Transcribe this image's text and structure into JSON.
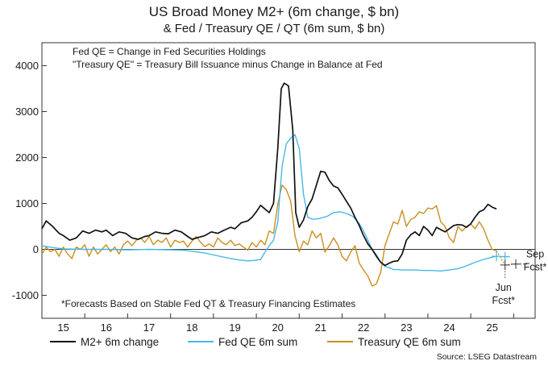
{
  "chart_data": {
    "type": "line",
    "title": "US Broad Money M2+ (6m change, $ bn)",
    "subtitle": "& Fed / Treasury QE / QT (6m sum, $ bn)",
    "notes": [
      "Fed QE = Change in Fed Securities Holdings",
      "\"Treasury QE\" = Treasury Bill Issuance minus Change in Balance at Fed"
    ],
    "footnote": "*Forecasts Based on Stable Fed QT & Treasury Financing Estimates",
    "source": "Source: LSEG Datastream",
    "xlabel": "",
    "ylabel": "",
    "xlim": [
      2014.5,
      2026.0
    ],
    "ylim": [
      -1500,
      4500
    ],
    "y_ticks": [
      -1000,
      0,
      1000,
      2000,
      3000,
      4000
    ],
    "y_tick_labels": [
      "-1000",
      "0",
      "1000",
      "2000",
      "3000",
      "4000"
    ],
    "x_ticks": [
      2015,
      2016,
      2017,
      2018,
      2019,
      2020,
      2021,
      2022,
      2023,
      2024,
      2025
    ],
    "x_tick_labels": [
      "15",
      "16",
      "17",
      "18",
      "19",
      "20",
      "21",
      "22",
      "23",
      "24",
      "25"
    ],
    "x_tick_bounds": [
      2014.5,
      2015.5,
      2016.5,
      2017.5,
      2018.5,
      2019.5,
      2020.5,
      2021.5,
      2022.5,
      2023.5,
      2024.5,
      2025.5,
      2026.0
    ],
    "series": [
      {
        "name": "M2+ 6m change",
        "color": "#111111",
        "x": [
          2014.5,
          2014.6,
          2014.75,
          2014.9,
          2015.0,
          2015.15,
          2015.3,
          2015.45,
          2015.6,
          2015.75,
          2015.9,
          2016.0,
          2016.15,
          2016.3,
          2016.45,
          2016.6,
          2016.75,
          2016.9,
          2017.0,
          2017.15,
          2017.3,
          2017.45,
          2017.6,
          2017.75,
          2017.9,
          2018.0,
          2018.15,
          2018.3,
          2018.45,
          2018.6,
          2018.75,
          2018.9,
          2019.0,
          2019.15,
          2019.3,
          2019.4,
          2019.5,
          2019.6,
          2019.7,
          2019.8,
          2019.9,
          2020.0,
          2020.08,
          2020.15,
          2020.25,
          2020.35,
          2020.42,
          2020.5,
          2020.6,
          2020.7,
          2020.8,
          2020.9,
          2021.0,
          2021.1,
          2021.2,
          2021.3,
          2021.4,
          2021.5,
          2021.6,
          2021.7,
          2021.8,
          2021.9,
          2022.0,
          2022.1,
          2022.2,
          2022.3,
          2022.4,
          2022.5,
          2022.6,
          2022.7,
          2022.8,
          2022.9,
          2023.0,
          2023.1,
          2023.2,
          2023.3,
          2023.4,
          2023.5,
          2023.6,
          2023.7,
          2023.8,
          2023.9,
          2024.0,
          2024.1,
          2024.2,
          2024.3,
          2024.4,
          2024.5,
          2024.6,
          2024.7,
          2024.8,
          2024.9,
          2025.0,
          2025.1
        ],
        "values": [
          450,
          620,
          500,
          350,
          300,
          200,
          250,
          400,
          350,
          420,
          380,
          420,
          300,
          380,
          350,
          250,
          220,
          280,
          300,
          380,
          350,
          340,
          420,
          380,
          280,
          220,
          260,
          300,
          380,
          350,
          420,
          480,
          450,
          580,
          620,
          700,
          820,
          960,
          880,
          800,
          1000,
          2200,
          3500,
          3620,
          3560,
          2600,
          800,
          480,
          640,
          930,
          1100,
          1400,
          1700,
          1680,
          1500,
          1380,
          1340,
          1200,
          1050,
          900,
          700,
          520,
          300,
          120,
          0,
          -150,
          -280,
          -350,
          -300,
          -260,
          -250,
          -100,
          200,
          320,
          380,
          300,
          500,
          420,
          300,
          480,
          430,
          380,
          450,
          520,
          540,
          530,
          480,
          560,
          700,
          820,
          860,
          980,
          920,
          880
        ]
      },
      {
        "name": "Fed QE 6m sum",
        "color": "#47b7ea",
        "x": [
          2014.5,
          2014.75,
          2015.0,
          2015.5,
          2016.0,
          2016.5,
          2017.0,
          2017.5,
          2017.8,
          2018.0,
          2018.3,
          2018.6,
          2018.9,
          2019.1,
          2019.3,
          2019.45,
          2019.6,
          2019.7,
          2019.8,
          2019.9,
          2020.0,
          2020.1,
          2020.2,
          2020.3,
          2020.4,
          2020.5,
          2020.6,
          2020.7,
          2020.8,
          2020.9,
          2021.0,
          2021.15,
          2021.3,
          2021.45,
          2021.6,
          2021.75,
          2021.9,
          2022.0,
          2022.1,
          2022.2,
          2022.3,
          2022.4,
          2022.5,
          2022.6,
          2022.7,
          2022.8,
          2022.9,
          2023.0,
          2023.2,
          2023.4,
          2023.6,
          2023.8,
          2024.0,
          2024.2,
          2024.4,
          2024.6,
          2024.8,
          2025.0,
          2025.1
        ],
        "values": [
          80,
          40,
          10,
          0,
          0,
          -10,
          0,
          -10,
          -20,
          -40,
          -80,
          -140,
          -200,
          -230,
          -250,
          -240,
          -220,
          -60,
          80,
          200,
          600,
          1800,
          2300,
          2420,
          2500,
          2200,
          1200,
          700,
          660,
          660,
          680,
          720,
          800,
          820,
          780,
          720,
          560,
          400,
          200,
          0,
          -120,
          -280,
          -370,
          -400,
          -440,
          -440,
          -450,
          -450,
          -450,
          -460,
          -460,
          -470,
          -450,
          -420,
          -360,
          -280,
          -220,
          -170,
          -150
        ]
      },
      {
        "name": "Treasury QE 6m sum",
        "color": "#c8901e",
        "x": [
          2014.5,
          2014.6,
          2014.7,
          2014.8,
          2014.9,
          2015.0,
          2015.1,
          2015.2,
          2015.3,
          2015.4,
          2015.5,
          2015.6,
          2015.7,
          2015.8,
          2015.9,
          2016.0,
          2016.1,
          2016.2,
          2016.3,
          2016.4,
          2016.5,
          2016.6,
          2016.7,
          2016.8,
          2016.9,
          2017.0,
          2017.1,
          2017.2,
          2017.3,
          2017.4,
          2017.5,
          2017.6,
          2017.7,
          2017.8,
          2017.9,
          2018.0,
          2018.1,
          2018.2,
          2018.3,
          2018.4,
          2018.5,
          2018.6,
          2018.7,
          2018.8,
          2018.9,
          2019.0,
          2019.1,
          2019.2,
          2019.3,
          2019.4,
          2019.5,
          2019.6,
          2019.7,
          2019.8,
          2019.9,
          2020.0,
          2020.1,
          2020.2,
          2020.3,
          2020.4,
          2020.5,
          2020.6,
          2020.7,
          2020.8,
          2020.9,
          2021.0,
          2021.1,
          2021.2,
          2021.3,
          2021.4,
          2021.5,
          2021.6,
          2021.7,
          2021.8,
          2021.9,
          2022.0,
          2022.1,
          2022.2,
          2022.3,
          2022.4,
          2022.5,
          2022.6,
          2022.7,
          2022.8,
          2022.9,
          2023.0,
          2023.1,
          2023.2,
          2023.3,
          2023.4,
          2023.5,
          2023.6,
          2023.7,
          2023.8,
          2023.9,
          2024.0,
          2024.1,
          2024.2,
          2024.3,
          2024.4,
          2024.5,
          2024.6,
          2024.7,
          2024.8,
          2024.9,
          2025.0,
          2025.1
        ],
        "values": [
          -100,
          50,
          -50,
          0,
          -150,
          50,
          -100,
          -200,
          50,
          0,
          100,
          -150,
          50,
          -100,
          0,
          100,
          -50,
          50,
          -100,
          100,
          180,
          80,
          200,
          250,
          150,
          280,
          100,
          200,
          150,
          250,
          50,
          200,
          150,
          180,
          50,
          180,
          280,
          150,
          60,
          120,
          50,
          250,
          150,
          100,
          200,
          80,
          120,
          50,
          -20,
          150,
          50,
          200,
          100,
          400,
          350,
          980,
          1400,
          1300,
          1050,
          300,
          -50,
          180,
          100,
          400,
          250,
          350,
          -60,
          80,
          250,
          100,
          -150,
          -250,
          -60,
          80,
          -300,
          -450,
          -580,
          -800,
          -750,
          -500,
          80,
          350,
          600,
          550,
          850,
          500,
          650,
          700,
          820,
          780,
          900,
          880,
          950,
          600,
          500,
          250,
          150,
          500,
          400,
          500,
          550,
          450,
          600,
          450,
          200,
          0,
          -30
        ]
      }
    ],
    "forecast": {
      "fed_qe": {
        "x": [
          2025.1,
          2025.3
        ],
        "values": [
          -150,
          -160
        ]
      },
      "treasury_qe": {
        "x": [
          2025.1,
          2025.3,
          2025.55
        ],
        "values": [
          -30,
          -340,
          -320
        ]
      },
      "labels": [
        "Jun\nFcst*",
        "Sep\nFcst*"
      ]
    },
    "legend": [
      "M2+ 6m change",
      "Fed QE 6m sum",
      "Treasury QE 6m sum"
    ],
    "legend_position": "bottom"
  }
}
